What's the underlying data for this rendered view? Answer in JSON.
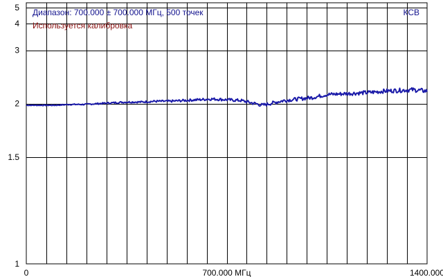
{
  "chart_data": {
    "type": "line",
    "info_line": "Диапазон: 700.000 ± 700.000 МГц, 500 точек",
    "calibration_note": "Используется калибровка",
    "mode_label": "КСВ",
    "x_tick_labels": [
      "0",
      "700.000 МГц",
      "1400.000"
    ],
    "y_tick_labels": [
      "1",
      "1.5",
      "2",
      "3",
      "4",
      "5"
    ],
    "y_ticks": [
      1,
      1.5,
      2,
      3,
      4,
      5
    ],
    "x_range": [
      0,
      1400
    ],
    "y_range": [
      1,
      5.4
    ],
    "x_unit": "МГц",
    "y_scale": "reciprocal",
    "grid": true,
    "points_count": 500,
    "series": [
      {
        "color": "#1a1aa8",
        "x": [
          0,
          50,
          100,
          150,
          200,
          250,
          300,
          350,
          400,
          450,
          500,
          550,
          600,
          650,
          700,
          750,
          800,
          825,
          850,
          900,
          950,
          1000,
          1050,
          1100,
          1150,
          1200,
          1250,
          1300,
          1350,
          1400
        ],
        "y": [
          1.98,
          1.98,
          1.98,
          1.99,
          1.99,
          2.0,
          2.01,
          2.02,
          2.02,
          2.03,
          2.03,
          2.04,
          2.05,
          2.06,
          2.05,
          2.04,
          2.0,
          1.98,
          2.0,
          2.04,
          2.06,
          2.08,
          2.12,
          2.13,
          2.14,
          2.15,
          2.17,
          2.18,
          2.19,
          2.17
        ]
      }
    ]
  }
}
